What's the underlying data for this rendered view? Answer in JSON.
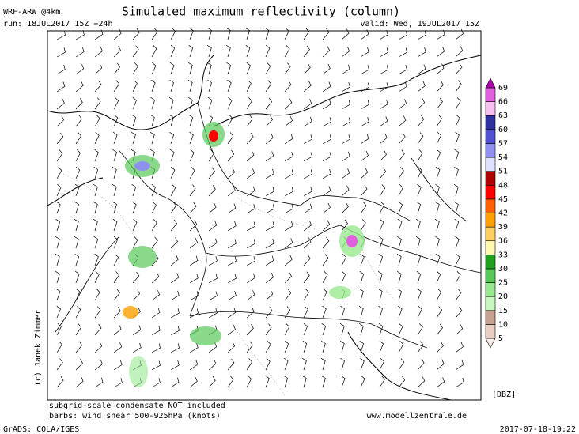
{
  "header": {
    "model": "WRF-ARW @4km",
    "title": "Simulated maximum reflectivity (column)",
    "run": "run: 18JUL2017 15Z +24h",
    "valid": "valid: Wed, 19JUL2017 15Z"
  },
  "map": {
    "credit": "(c) Janek Zimmer"
  },
  "colorbar": {
    "unit": "[DBZ]",
    "levels": [
      5,
      10,
      15,
      20,
      25,
      30,
      33,
      36,
      39,
      42,
      45,
      48,
      51,
      54,
      57,
      60,
      63,
      66,
      69
    ],
    "colors": [
      "#f8ece6",
      "#e8cfc4",
      "#c8a090",
      "#c8f8c0",
      "#98e890",
      "#58c858",
      "#20a020",
      "#fff8b0",
      "#ffd060",
      "#ffa000",
      "#ff6000",
      "#ff0000",
      "#b00000",
      "#e0e0ff",
      "#9090f0",
      "#5050d0",
      "#3030a0",
      "#f8c0f0",
      "#e060e0",
      "#b000b0"
    ]
  },
  "footer": {
    "note1": "subgrid-scale condensate NOT included",
    "note2": "barbs: wind shear 500-925hPa (knots)",
    "site": "www.modellzentrale.de",
    "grads": "GrADS: COLA/IGES",
    "timestamp": "2017-07-18-19:22"
  }
}
